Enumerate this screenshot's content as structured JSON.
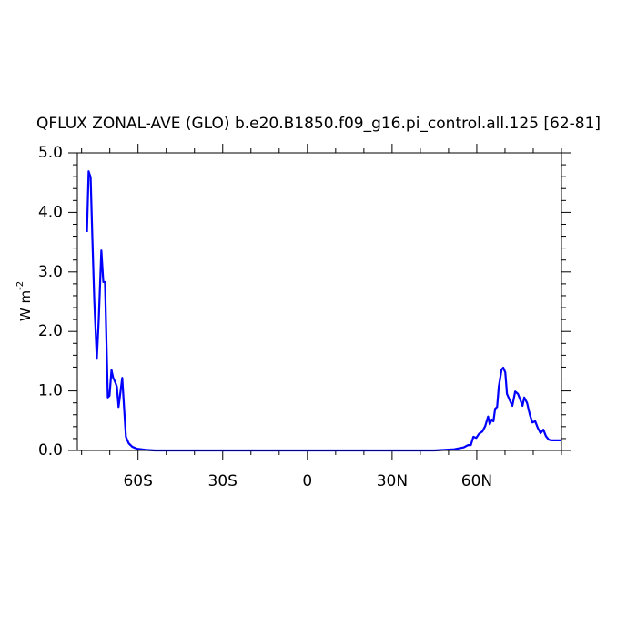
{
  "chart_data": {
    "type": "line",
    "title": "QFLUX ZONAL-AVE (GLO) b.e20.B1850.f09_g16.pi_control.all.125 [62-81]",
    "ylabel": "W m",
    "ylabel_superscript": "-2",
    "xlim": [
      -81.5,
      90
    ],
    "ylim": [
      0,
      5
    ],
    "xticks": [
      {
        "value": -60,
        "label": "60S"
      },
      {
        "value": -30,
        "label": "30S"
      },
      0,
      {
        "value": 30,
        "label": "30N"
      },
      {
        "value": 60,
        "label": "60N"
      }
    ],
    "yticks": [
      {
        "value": 0,
        "label": "0.0"
      },
      {
        "value": 1,
        "label": "1.0"
      },
      {
        "value": 2,
        "label": "2.0"
      },
      {
        "value": 3,
        "label": "3.0"
      },
      {
        "value": 4,
        "label": "4.0"
      },
      {
        "value": 5,
        "label": "5.0"
      }
    ],
    "xminor_ticks": [
      -80,
      -70,
      -50,
      -40,
      -20,
      -10,
      10,
      20,
      40,
      50,
      70,
      80,
      90
    ],
    "yminor_ticks": [
      0.2,
      0.4,
      0.6,
      0.8,
      1.2,
      1.4,
      1.6,
      1.8,
      2.2,
      2.4,
      2.6,
      2.8,
      3.2,
      3.4,
      3.6,
      3.8,
      4.2,
      4.4,
      4.6,
      4.8
    ],
    "series": [
      {
        "color": "#0000ff",
        "x": [
          -78.1,
          -77.5,
          -76.8,
          -76.2,
          -75.5,
          -74.6,
          -73.9,
          -73.0,
          -72.3,
          -71.7,
          -70.7,
          -70.1,
          -69.4,
          -68.8,
          -68.1,
          -67.5,
          -66.9,
          -66.2,
          -65.6,
          -64.9,
          -64.3,
          -63.3,
          -62.0,
          -60.4,
          -57.2,
          -54,
          0,
          45,
          52,
          55.3,
          56.9,
          57.9,
          58.8,
          59.8,
          60.8,
          62,
          63,
          64,
          64.6,
          65.3,
          65.9,
          66.5,
          67.2,
          67.8,
          68.8,
          69.4,
          70.1,
          70.7,
          71.7,
          72.6,
          73.6,
          74.6,
          75.5,
          76.2,
          76.8,
          77.8,
          78.8,
          79.7,
          80.7,
          81.6,
          82.6,
          83.6,
          84.5,
          85.5,
          86.5,
          88.7,
          89.7
        ],
        "values": [
          3.67,
          4.69,
          4.59,
          3.59,
          2.52,
          1.54,
          2.22,
          3.36,
          2.83,
          2.83,
          0.89,
          0.92,
          1.35,
          1.22,
          1.15,
          1.07,
          0.73,
          0.99,
          1.22,
          0.69,
          0.23,
          0.12,
          0.06,
          0.03,
          0.01,
          0,
          0,
          0,
          0.02,
          0.05,
          0.09,
          0.09,
          0.23,
          0.21,
          0.28,
          0.32,
          0.41,
          0.57,
          0.44,
          0.52,
          0.49,
          0.7,
          0.73,
          1.07,
          1.36,
          1.39,
          1.31,
          0.95,
          0.84,
          0.75,
          0.99,
          0.95,
          0.84,
          0.75,
          0.89,
          0.8,
          0.6,
          0.47,
          0.49,
          0.38,
          0.29,
          0.35,
          0.24,
          0.18,
          0.17,
          0.17,
          0.17
        ]
      }
    ]
  }
}
